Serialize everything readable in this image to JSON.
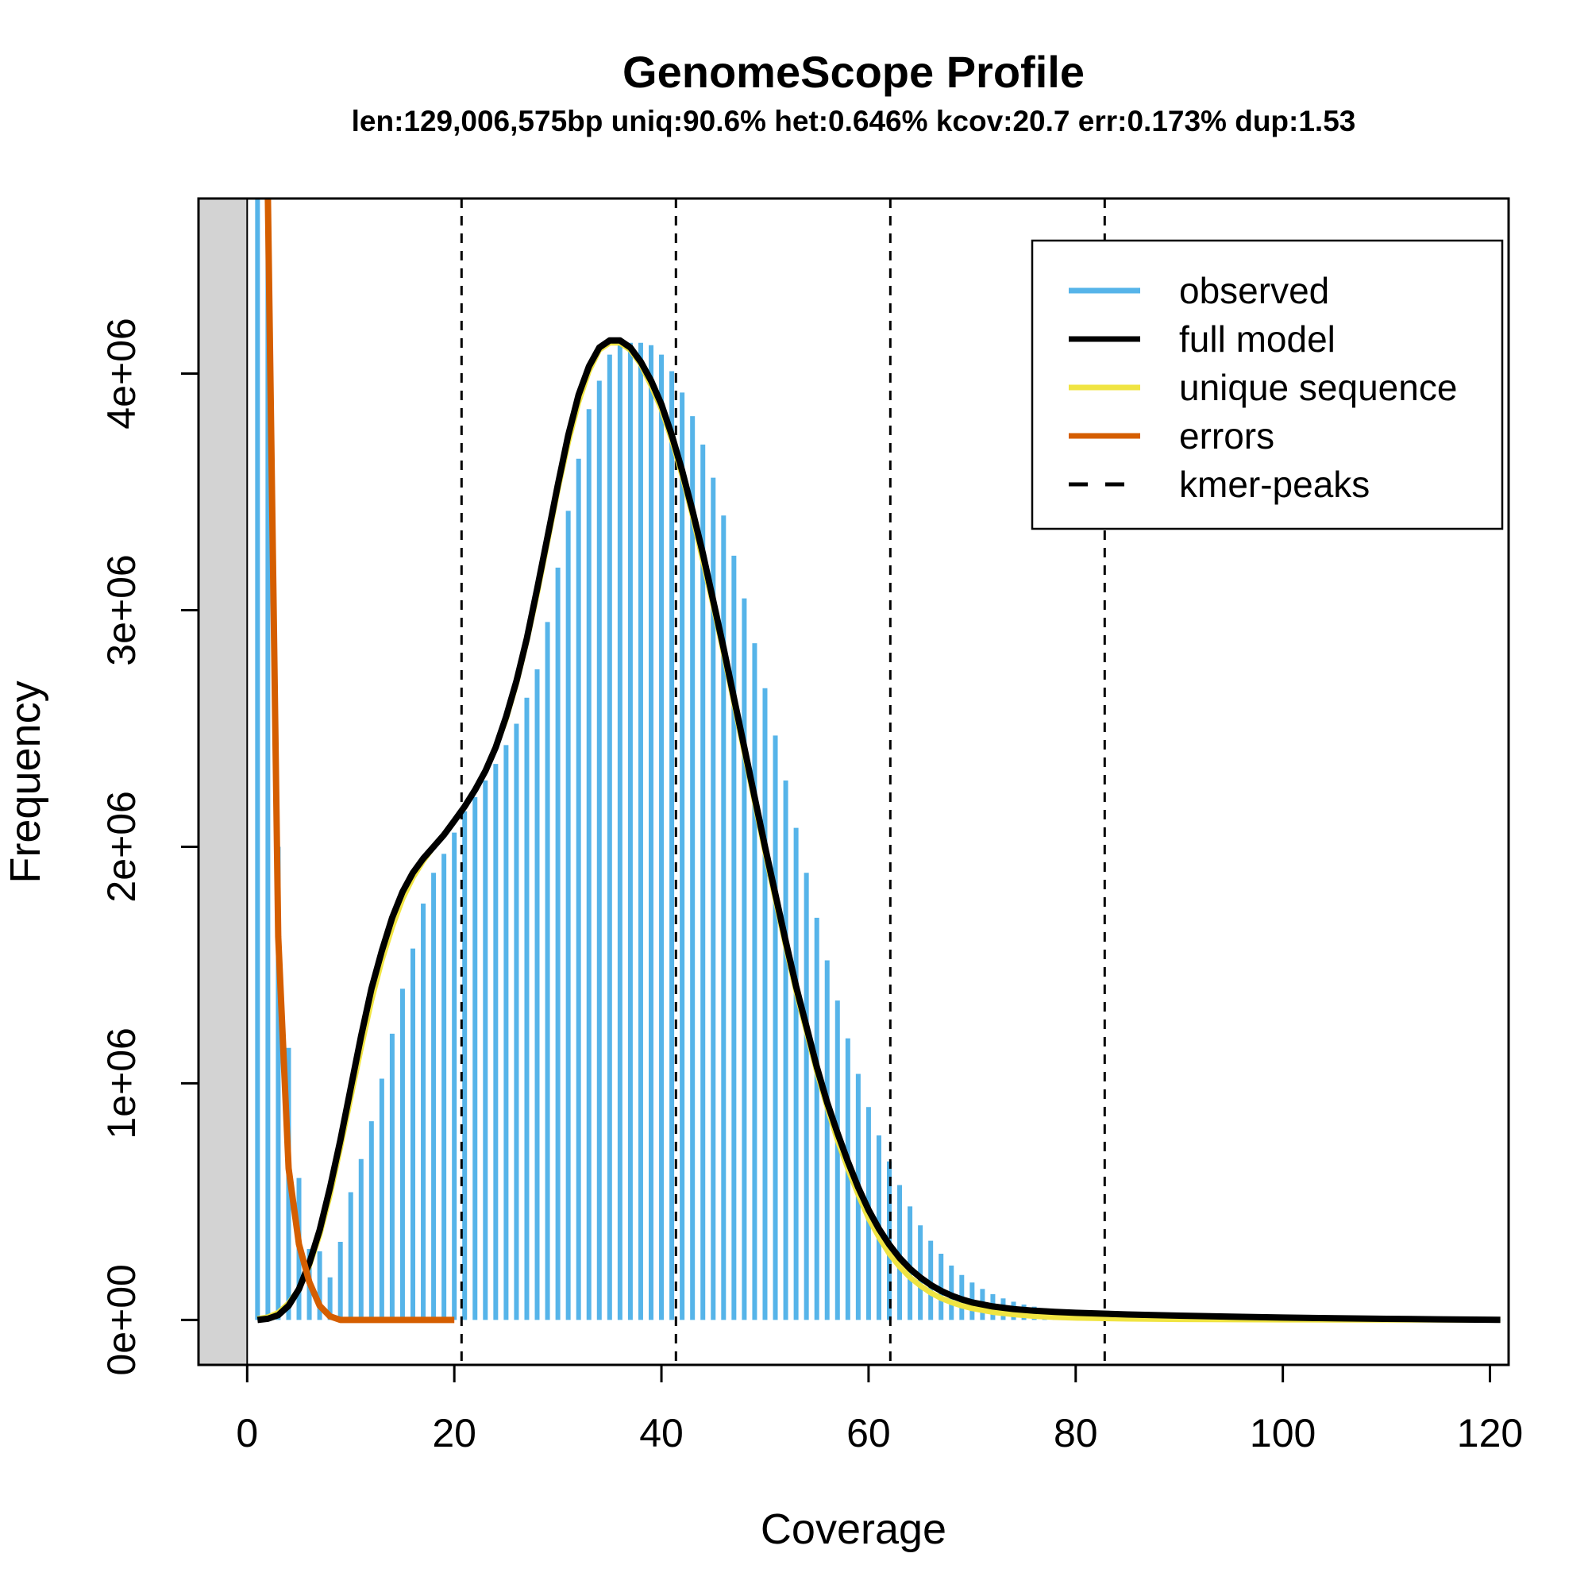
{
  "chart_data": {
    "type": "line",
    "title": "GenomeScope Profile",
    "subtitle": "len:129,006,575bp uniq:90.6% het:0.646% kcov:20.7 err:0.173% dup:1.53",
    "xlabel": "Coverage",
    "ylabel": "Frequency",
    "xlim": [
      -4.7,
      121.8
    ],
    "ylim": [
      -190000,
      4740000
    ],
    "x_ticks": [
      0,
      20,
      40,
      60,
      80,
      100,
      120
    ],
    "x_tick_labels": [
      "0",
      "20",
      "40",
      "60",
      "80",
      "100",
      "120"
    ],
    "y_ticks": [
      0,
      1000000,
      2000000,
      3000000,
      4000000
    ],
    "y_tick_labels": [
      "0e+00",
      "1e+06",
      "2e+06",
      "3e+06",
      "4e+06"
    ],
    "excluded_region": [
      -4.7,
      0
    ],
    "kmer_peaks": [
      20.7,
      41.4,
      62.1,
      82.8
    ],
    "legend": {
      "position": "top-right",
      "entries": [
        {
          "label": "observed",
          "color": "#56B4E9",
          "style": "solid"
        },
        {
          "label": "full model",
          "color": "#000000",
          "style": "solid"
        },
        {
          "label": "unique sequence",
          "color": "#F0E442",
          "style": "solid"
        },
        {
          "label": "errors",
          "color": "#D55E00",
          "style": "solid"
        },
        {
          "label": "kmer-peaks",
          "color": "#000000",
          "style": "dashed"
        }
      ]
    },
    "observed": {
      "name": "observed",
      "color": "#56B4E9",
      "x": [
        1,
        2,
        3,
        4,
        5,
        6,
        7,
        8,
        9,
        10,
        11,
        12,
        13,
        14,
        15,
        16,
        17,
        18,
        19,
        20,
        21,
        22,
        23,
        24,
        25,
        26,
        27,
        28,
        29,
        30,
        31,
        32,
        33,
        34,
        35,
        36,
        37,
        38,
        39,
        40,
        41,
        42,
        43,
        44,
        45,
        46,
        47,
        48,
        49,
        50,
        51,
        52,
        53,
        54,
        55,
        56,
        57,
        58,
        59,
        60,
        61,
        62,
        63,
        64,
        65,
        66,
        67,
        68,
        69,
        70,
        71,
        72,
        73,
        74,
        75,
        76,
        77,
        78,
        79,
        80,
        81,
        82,
        83,
        84,
        85,
        86,
        87,
        88,
        89,
        90,
        91,
        92,
        93,
        94,
        95,
        96,
        97,
        98,
        99,
        100,
        101,
        102,
        103,
        104,
        105,
        106,
        107,
        108,
        109,
        110,
        111,
        112,
        113,
        114,
        115,
        116,
        117,
        118,
        119,
        120,
        121
      ],
      "y": [
        4740000,
        4740000,
        2000000,
        1150000,
        600000,
        300000,
        290000,
        180000,
        330000,
        540000,
        680000,
        840000,
        1020000,
        1210000,
        1400000,
        1570000,
        1760000,
        1890000,
        1970000,
        2060000,
        2150000,
        2210000,
        2280000,
        2350000,
        2430000,
        2520000,
        2630000,
        2750000,
        2950000,
        3180000,
        3420000,
        3640000,
        3850000,
        3970000,
        4080000,
        4120000,
        4130000,
        4130000,
        4120000,
        4080000,
        4010000,
        3920000,
        3820000,
        3700000,
        3560000,
        3400000,
        3230000,
        3050000,
        2860000,
        2670000,
        2470000,
        2280000,
        2080000,
        1890000,
        1700000,
        1520000,
        1350000,
        1190000,
        1040000,
        900000,
        780000,
        670000,
        570000,
        480000,
        400000,
        335000,
        280000,
        230000,
        190000,
        158000,
        131000,
        109000,
        91000,
        77000,
        65000,
        56000,
        49000,
        43000,
        38000,
        34000,
        31000,
        28000,
        26000,
        24000,
        22000,
        21000,
        20000,
        19000,
        18000,
        17000,
        16000,
        15000,
        14000,
        13000,
        12000,
        11500,
        11000,
        10500,
        10000,
        9500,
        9000,
        8500,
        8000,
        7500,
        7000,
        6500,
        6000,
        5500,
        5000,
        4500,
        4000,
        3600,
        3200,
        2800,
        2400,
        2000,
        1700,
        1400,
        1100,
        900,
        700
      ]
    },
    "series": [
      {
        "name": "unique sequence",
        "color": "#F0E442",
        "x": [
          1,
          2,
          3,
          4,
          5,
          6,
          7,
          8,
          9,
          10,
          11,
          12,
          13,
          14,
          15,
          16,
          17,
          18,
          19,
          20,
          21,
          22,
          23,
          24,
          25,
          26,
          27,
          28,
          29,
          30,
          31,
          32,
          33,
          34,
          35,
          36,
          37,
          38,
          39,
          40,
          41,
          42,
          43,
          44,
          45,
          46,
          47,
          48,
          49,
          50,
          51,
          52,
          53,
          54,
          55,
          56,
          57,
          58,
          59,
          60,
          61,
          62,
          63,
          64,
          65,
          66,
          67,
          68,
          69,
          70,
          72,
          74,
          76,
          78,
          80,
          85,
          90,
          95,
          100,
          105,
          110,
          115,
          121
        ],
        "y": [
          5000,
          12000,
          30000,
          70000,
          130000,
          230000,
          360000,
          530000,
          730000,
          940000,
          1150000,
          1350000,
          1520000,
          1660000,
          1780000,
          1870000,
          1940000,
          2000000,
          2050000,
          2110000,
          2170000,
          2240000,
          2320000,
          2420000,
          2540000,
          2690000,
          2870000,
          3070000,
          3290000,
          3510000,
          3710000,
          3880000,
          4010000,
          4100000,
          4130000,
          4130000,
          4100000,
          4040000,
          3950000,
          3850000,
          3720000,
          3570000,
          3400000,
          3210000,
          3020000,
          2820000,
          2610000,
          2400000,
          2190000,
          1980000,
          1780000,
          1580000,
          1390000,
          1220000,
          1050000,
          900000,
          760000,
          640000,
          530000,
          430000,
          350000,
          280000,
          225000,
          180000,
          145000,
          115000,
          92000,
          74000,
          60000,
          49000,
          33000,
          23000,
          16000,
          11500,
          8500,
          4500,
          2500,
          1500,
          900,
          500,
          300,
          150,
          50
        ]
      },
      {
        "name": "full model",
        "color": "#000000",
        "x": [
          1,
          2,
          3,
          4,
          5,
          6,
          7,
          8,
          9,
          10,
          11,
          12,
          13,
          14,
          15,
          16,
          17,
          18,
          19,
          20,
          21,
          22,
          23,
          24,
          25,
          26,
          27,
          28,
          29,
          30,
          31,
          32,
          33,
          34,
          35,
          36,
          37,
          38,
          39,
          40,
          41,
          42,
          43,
          44,
          45,
          46,
          47,
          48,
          49,
          50,
          51,
          52,
          53,
          54,
          55,
          56,
          57,
          58,
          59,
          60,
          61,
          62,
          63,
          64,
          65,
          66,
          67,
          68,
          69,
          70,
          72,
          74,
          76,
          78,
          80,
          85,
          90,
          95,
          100,
          105,
          110,
          115,
          121
        ],
        "y": [
          0,
          5000,
          20000,
          60000,
          130000,
          240000,
          380000,
          560000,
          760000,
          980000,
          1200000,
          1400000,
          1560000,
          1700000,
          1810000,
          1890000,
          1950000,
          2000000,
          2050000,
          2110000,
          2170000,
          2240000,
          2320000,
          2420000,
          2550000,
          2700000,
          2880000,
          3090000,
          3310000,
          3530000,
          3740000,
          3910000,
          4030000,
          4110000,
          4140000,
          4140000,
          4110000,
          4050000,
          3970000,
          3870000,
          3740000,
          3590000,
          3420000,
          3240000,
          3040000,
          2840000,
          2630000,
          2420000,
          2210000,
          2000000,
          1800000,
          1600000,
          1410000,
          1240000,
          1070000,
          920000,
          790000,
          670000,
          560000,
          465000,
          385000,
          318000,
          262000,
          216000,
          179000,
          148000,
          123000,
          103000,
          87000,
          74000,
          57000,
          46000,
          39000,
          34000,
          30000,
          23000,
          18000,
          14000,
          10000,
          7000,
          4500,
          2500,
          500
        ]
      },
      {
        "name": "errors",
        "color": "#D55E00",
        "x": [
          2,
          3,
          4,
          5,
          6,
          7,
          8,
          9,
          10,
          12,
          14,
          16,
          18,
          20
        ],
        "y": [
          4740000,
          1620000,
          640000,
          320000,
          160000,
          60000,
          15000,
          0,
          0,
          0,
          0,
          0,
          0,
          0
        ]
      }
    ]
  }
}
